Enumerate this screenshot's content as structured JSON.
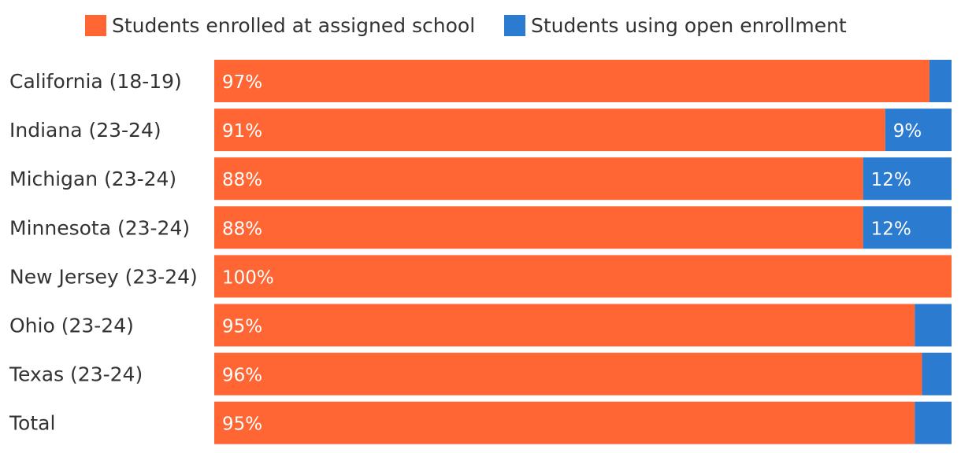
{
  "chart_data": {
    "type": "bar",
    "orientation": "horizontal",
    "stacked": true,
    "categories": [
      "California (18-19)",
      "Indiana (23-24)",
      "Michigan (23-24)",
      "Minnesota (23-24)",
      "New Jersey (23-24)",
      "Ohio (23-24)",
      "Texas (23-24)",
      "Total"
    ],
    "series": [
      {
        "name": "Students enrolled at assigned school",
        "color": "#ff6633",
        "values": [
          97,
          91,
          88,
          88,
          100,
          95,
          96,
          95
        ],
        "labels": [
          "97%",
          "91%",
          "88%",
          "88%",
          "100%",
          "95%",
          "96%",
          "95%"
        ]
      },
      {
        "name": "Students using open enrollment",
        "color": "#2b7bd1",
        "values": [
          3,
          9,
          12,
          12,
          0.4,
          5,
          4,
          5
        ],
        "labels": [
          "",
          "9%",
          "12%",
          "12%",
          "",
          "",
          "",
          ""
        ]
      }
    ],
    "xlim": [
      0,
      100
    ],
    "legend_position": "top",
    "grid": false
  }
}
